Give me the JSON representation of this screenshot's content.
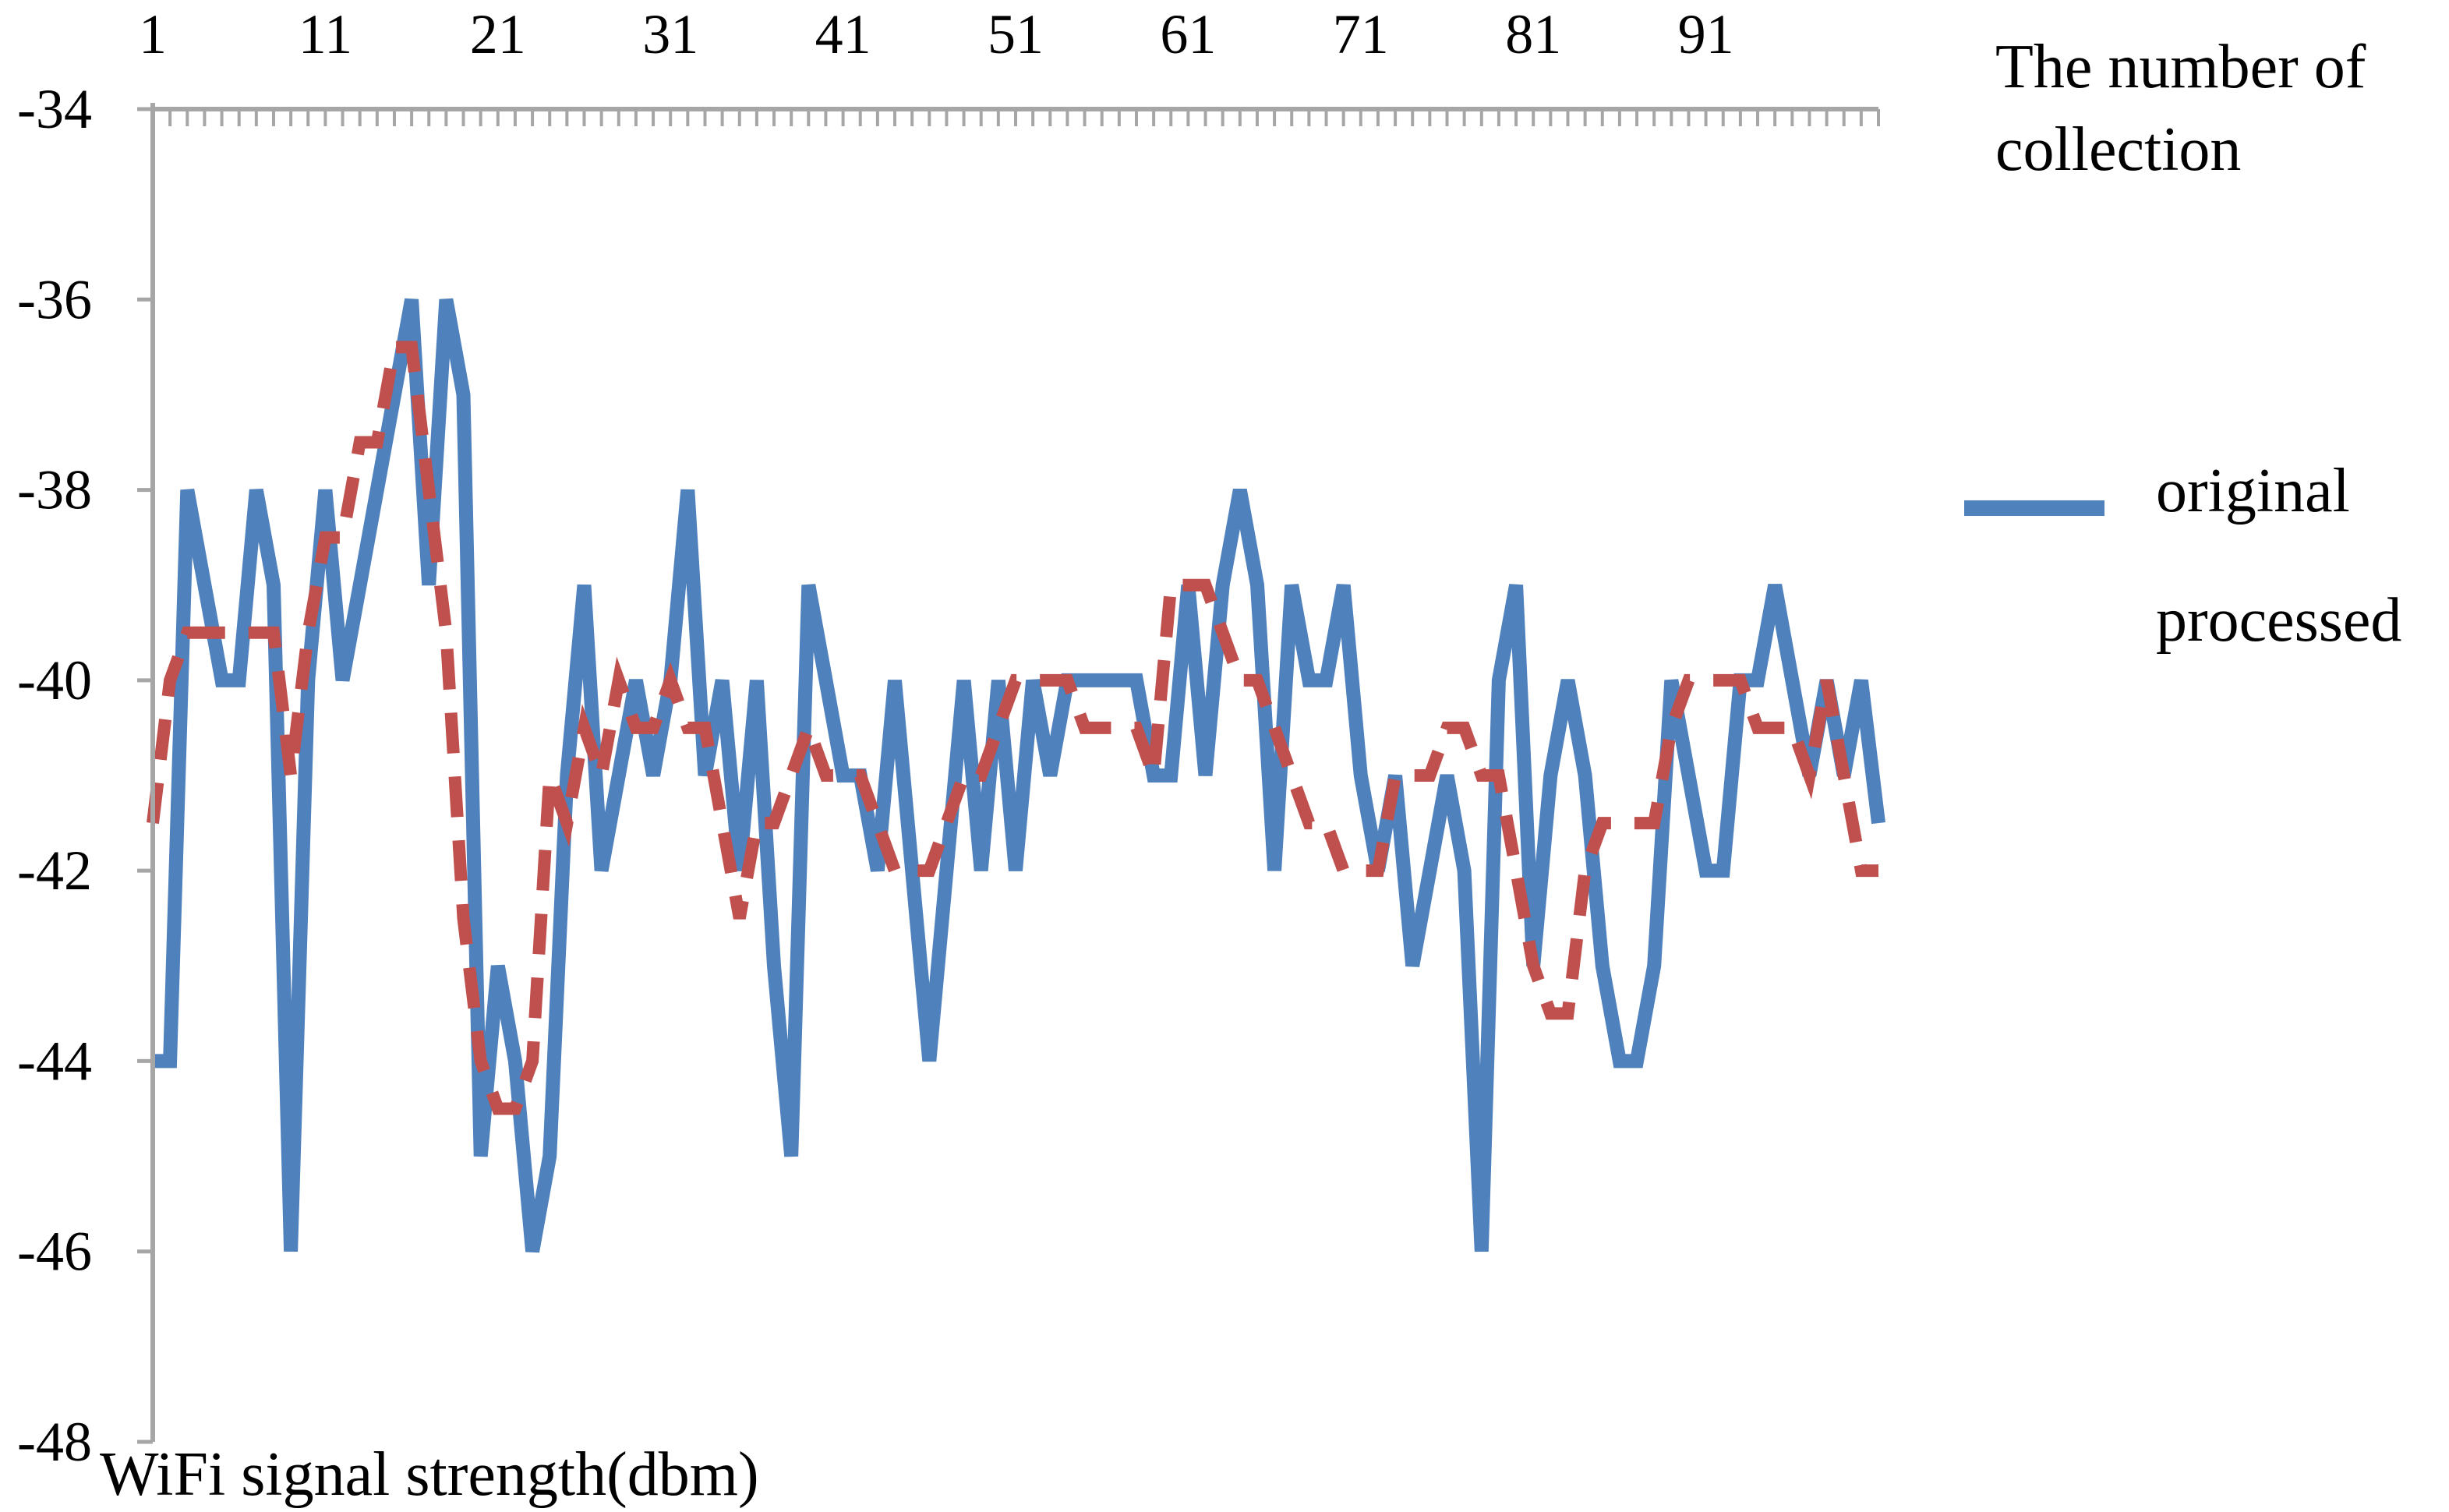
{
  "chart_data": {
    "type": "line",
    "title": "",
    "xlabel": "The number of collection",
    "xlabel_lines": [
      "The number of",
      "collection"
    ],
    "ylabel": "WiFi signal strength(dbm)",
    "x": [
      1,
      2,
      3,
      4,
      5,
      6,
      7,
      8,
      9,
      10,
      11,
      12,
      13,
      14,
      15,
      16,
      17,
      18,
      19,
      20,
      21,
      22,
      23,
      24,
      25,
      26,
      27,
      28,
      29,
      30,
      31,
      32,
      33,
      34,
      35,
      36,
      37,
      38,
      39,
      40,
      41,
      42,
      43,
      44,
      45,
      46,
      47,
      48,
      49,
      50,
      51,
      52,
      53,
      54,
      55,
      56,
      57,
      58,
      59,
      60,
      61,
      62,
      63,
      64,
      65,
      66,
      67,
      68,
      69,
      70,
      71,
      72,
      73,
      74,
      75,
      76,
      77,
      78,
      79,
      80,
      81,
      82,
      83,
      84,
      85,
      86,
      87,
      88,
      89,
      90,
      91,
      92,
      93,
      94,
      95,
      96,
      97,
      98,
      99,
      100,
      101
    ],
    "x_tick_labels": [
      "1",
      "11",
      "21",
      "31",
      "41",
      "51",
      "61",
      "71",
      "81",
      "91"
    ],
    "x_tick_values": [
      1,
      11,
      21,
      31,
      41,
      51,
      61,
      71,
      81,
      91
    ],
    "xlim": [
      1,
      101
    ],
    "ylim": [
      -48,
      -34
    ],
    "y_tick_labels": [
      "-34",
      "-36",
      "-38",
      "-40",
      "-42",
      "-44",
      "-46",
      "-48"
    ],
    "y_tick_values": [
      -34,
      -36,
      -38,
      -40,
      -42,
      -44,
      -46,
      -48
    ],
    "x_axis_position": "top",
    "y_axis_inverted": true,
    "grid": false,
    "legend_position": "right",
    "series": [
      {
        "name": "original",
        "color": "#4F81BD",
        "style": "solid",
        "values": [
          -44,
          -44,
          -38,
          -39,
          -40,
          -40,
          -38,
          -39,
          -46,
          -40,
          -38,
          -40,
          -39,
          -38,
          -37,
          -36,
          -39,
          -36,
          -37,
          -45,
          -43,
          -44,
          -46,
          -45,
          -41,
          -39,
          -42,
          -41,
          -40,
          -41,
          -40,
          -38,
          -41,
          -40,
          -42,
          -40,
          -43,
          -45,
          -39,
          -40,
          -41,
          -41,
          -42,
          -40,
          -42,
          -44,
          -42,
          -40,
          -42,
          -40,
          -42,
          -40,
          -41,
          -40,
          -40,
          -40,
          -40,
          -40,
          -41,
          -41,
          -39,
          -41,
          -39,
          -38,
          -39,
          -42,
          -39,
          -40,
          -40,
          -39,
          -41,
          -42,
          -41,
          -43,
          -42,
          -41,
          -42,
          -46,
          -40,
          -39,
          -43,
          -41,
          -40,
          -41,
          -43,
          -44,
          -44,
          -43,
          -40,
          -41,
          -42,
          -42,
          -40,
          -40,
          -39,
          -40,
          -41,
          -40,
          -41,
          -40,
          -41.5
        ]
      },
      {
        "name": "processed",
        "color": "#C0504D",
        "style": "dashed",
        "values": [
          -41.5,
          -40,
          -39.5,
          -39.5,
          -39.5,
          -39.5,
          -39.5,
          -39.5,
          -41,
          -39.5,
          -38.5,
          -38.5,
          -37.5,
          -37.5,
          -36.5,
          -36.5,
          -38,
          -39.5,
          -42.5,
          -44,
          -44.5,
          -44.5,
          -44,
          -41,
          -41.5,
          -40.5,
          -41,
          -40,
          -40.5,
          -40.5,
          -40,
          -40.5,
          -40.5,
          -41.5,
          -42.5,
          -41.5,
          -41.5,
          -41,
          -40.5,
          -41,
          -41,
          -41,
          -41.5,
          -42,
          -42,
          -42,
          -41.5,
          -41,
          -41,
          -40.5,
          -40,
          -40,
          -40,
          -40,
          -40.5,
          -40.5,
          -40.5,
          -40.5,
          -41,
          -39,
          -39,
          -39,
          -39.5,
          -40,
          -40,
          -40.5,
          -41,
          -41.5,
          -41.5,
          -42,
          -42,
          -42,
          -41,
          -41,
          -41,
          -40.5,
          -40.5,
          -41,
          -41,
          -42,
          -43,
          -43.5,
          -43.5,
          -42,
          -41.5,
          -41.5,
          -41.5,
          -41.5,
          -40.5,
          -40,
          -40,
          -40,
          -40,
          -40.5,
          -40.5,
          -40.5,
          -41,
          -40,
          -41,
          -42,
          -42
        ]
      }
    ]
  }
}
